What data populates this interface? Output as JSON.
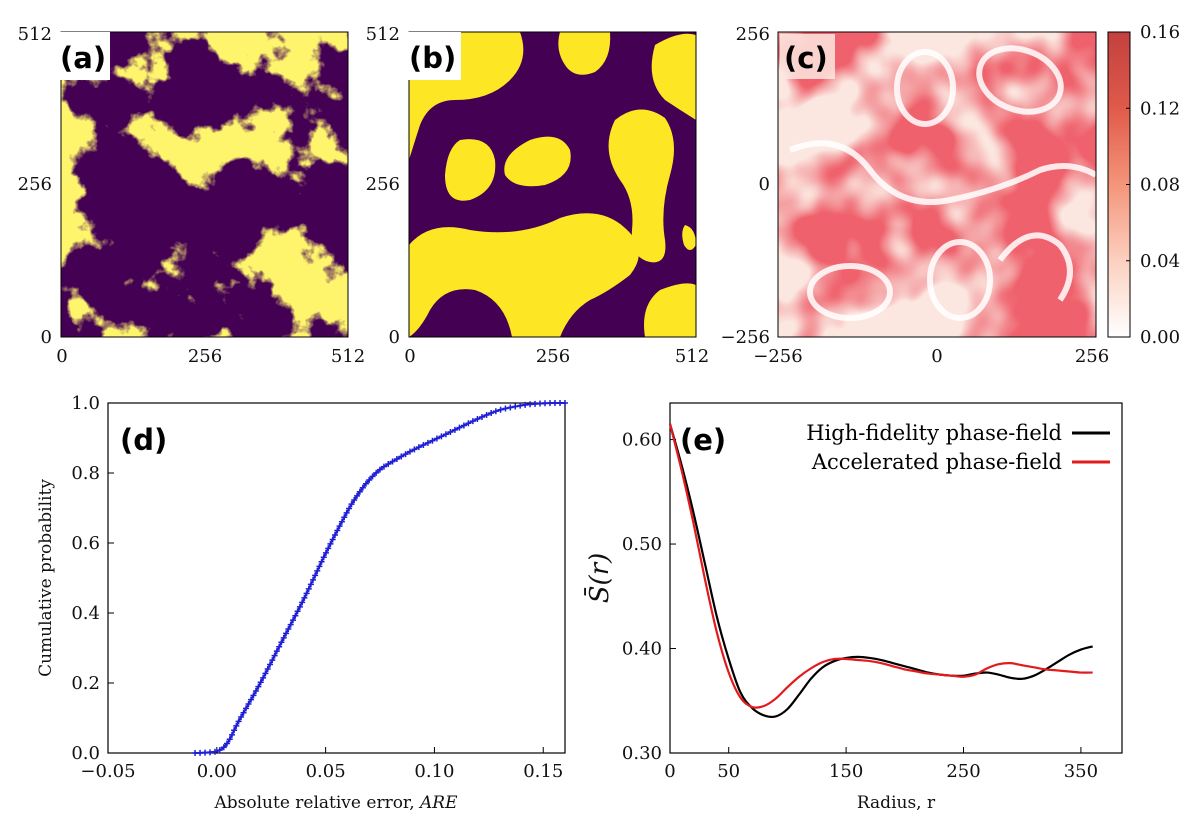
{
  "chart_data": [
    {
      "id": "a",
      "type": "heatmap",
      "panel_label": "(a)",
      "description": "binary two-phase microstructure, fine fractal-like yellow domains on purple background",
      "xticks": [
        "0",
        "256",
        "512"
      ],
      "yticks": [
        "0",
        "256",
        "512"
      ],
      "xlim": [
        0,
        512
      ],
      "ylim": [
        0,
        512
      ],
      "colors": {
        "phase_high": "#FDE725",
        "phase_low": "#440154"
      }
    },
    {
      "id": "b",
      "type": "heatmap",
      "panel_label": "(b)",
      "description": "binary coarsened microstructure, smooth yellow domains on purple background",
      "xticks": [
        "0",
        "256",
        "512"
      ],
      "yticks": [
        "0",
        "256",
        "512"
      ],
      "xlim": [
        0,
        512
      ],
      "ylim": [
        0,
        512
      ],
      "colors": {
        "phase_high": "#FDE725",
        "phase_low": "#440154"
      }
    },
    {
      "id": "c",
      "type": "heatmap",
      "panel_label": "(c)",
      "description": "error map in red colormap with white ring-like contours",
      "xticks": [
        "−256",
        "0",
        "256"
      ],
      "yticks": [
        "−256",
        "0",
        "256"
      ],
      "xlim": [
        -256,
        256
      ],
      "ylim": [
        -256,
        256
      ],
      "colorbar": {
        "min": 0.0,
        "max": 0.16,
        "ticks": [
          "0.00",
          "0.04",
          "0.08",
          "0.12",
          "0.16"
        ],
        "color_low": "#ffffff",
        "color_high": "#b2182b"
      }
    },
    {
      "id": "d",
      "type": "line",
      "panel_label": "(d)",
      "xlabel_text": "Absolute relative error, ",
      "xlabel_var": "ARE",
      "ylabel": "Cumulative probability",
      "xlim": [
        -0.05,
        0.16
      ],
      "ylim": [
        0.0,
        1.0
      ],
      "xticks": [
        -0.05,
        0.0,
        0.05,
        0.1,
        0.15
      ],
      "xtick_labels": [
        "−0.05",
        "0.00",
        "0.05",
        "0.10",
        "0.15"
      ],
      "yticks": [
        0.0,
        0.2,
        0.4,
        0.6,
        0.8,
        1.0
      ],
      "ytick_labels": [
        "0.0",
        "0.2",
        "0.4",
        "0.6",
        "0.8",
        "1.0"
      ],
      "series": [
        {
          "name": "CDF of ARE",
          "color": "#1f1fd6",
          "marker": "plus",
          "x": [
            -0.01,
            0.0,
            0.005,
            0.01,
            0.02,
            0.03,
            0.04,
            0.05,
            0.06,
            0.065,
            0.07,
            0.075,
            0.08,
            0.09,
            0.1,
            0.11,
            0.12,
            0.13,
            0.14,
            0.145,
            0.15,
            0.155,
            0.16
          ],
          "y": [
            0.0,
            0.005,
            0.03,
            0.09,
            0.2,
            0.32,
            0.44,
            0.57,
            0.69,
            0.74,
            0.78,
            0.81,
            0.83,
            0.865,
            0.895,
            0.925,
            0.955,
            0.98,
            0.993,
            0.997,
            0.999,
            1.0,
            1.0
          ]
        }
      ]
    },
    {
      "id": "e",
      "type": "line",
      "panel_label": "(e)",
      "xlabel": "Radius, r",
      "ylabel": "S̄(r)",
      "xlim": [
        0,
        385
      ],
      "ylim": [
        0.3,
        0.635
      ],
      "xticks": [
        0,
        50,
        150,
        250,
        350
      ],
      "xtick_labels": [
        "0",
        "50",
        "150",
        "250",
        "350"
      ],
      "yticks": [
        0.3,
        0.4,
        0.5,
        0.6
      ],
      "ytick_labels": [
        "0.30",
        "0.40",
        "0.50",
        "0.60"
      ],
      "legend_position": "top-right",
      "series": [
        {
          "name": "High-fidelity phase-field",
          "color": "#000000",
          "x": [
            0,
            10,
            20,
            30,
            40,
            50,
            60,
            70,
            80,
            90,
            100,
            110,
            120,
            130,
            140,
            150,
            160,
            170,
            180,
            190,
            200,
            210,
            220,
            230,
            240,
            250,
            260,
            270,
            280,
            290,
            300,
            310,
            320,
            330,
            340,
            350,
            360
          ],
          "y": [
            0.615,
            0.575,
            0.53,
            0.48,
            0.43,
            0.39,
            0.358,
            0.343,
            0.336,
            0.335,
            0.342,
            0.356,
            0.371,
            0.382,
            0.388,
            0.391,
            0.392,
            0.391,
            0.389,
            0.386,
            0.383,
            0.38,
            0.377,
            0.375,
            0.374,
            0.374,
            0.376,
            0.377,
            0.375,
            0.372,
            0.371,
            0.374,
            0.38,
            0.387,
            0.394,
            0.399,
            0.402
          ]
        },
        {
          "name": "Accelerated phase-field",
          "color": "#e31a1c",
          "x": [
            0,
            10,
            20,
            30,
            40,
            50,
            60,
            70,
            80,
            90,
            100,
            110,
            120,
            130,
            140,
            150,
            160,
            170,
            180,
            190,
            200,
            210,
            220,
            230,
            240,
            250,
            260,
            270,
            280,
            290,
            300,
            310,
            320,
            330,
            340,
            350,
            360
          ],
          "y": [
            0.615,
            0.57,
            0.52,
            0.465,
            0.415,
            0.377,
            0.353,
            0.344,
            0.345,
            0.352,
            0.363,
            0.373,
            0.381,
            0.387,
            0.39,
            0.39,
            0.389,
            0.388,
            0.386,
            0.383,
            0.38,
            0.378,
            0.376,
            0.375,
            0.374,
            0.373,
            0.375,
            0.381,
            0.385,
            0.386,
            0.384,
            0.382,
            0.38,
            0.379,
            0.378,
            0.377,
            0.377
          ]
        }
      ]
    }
  ]
}
